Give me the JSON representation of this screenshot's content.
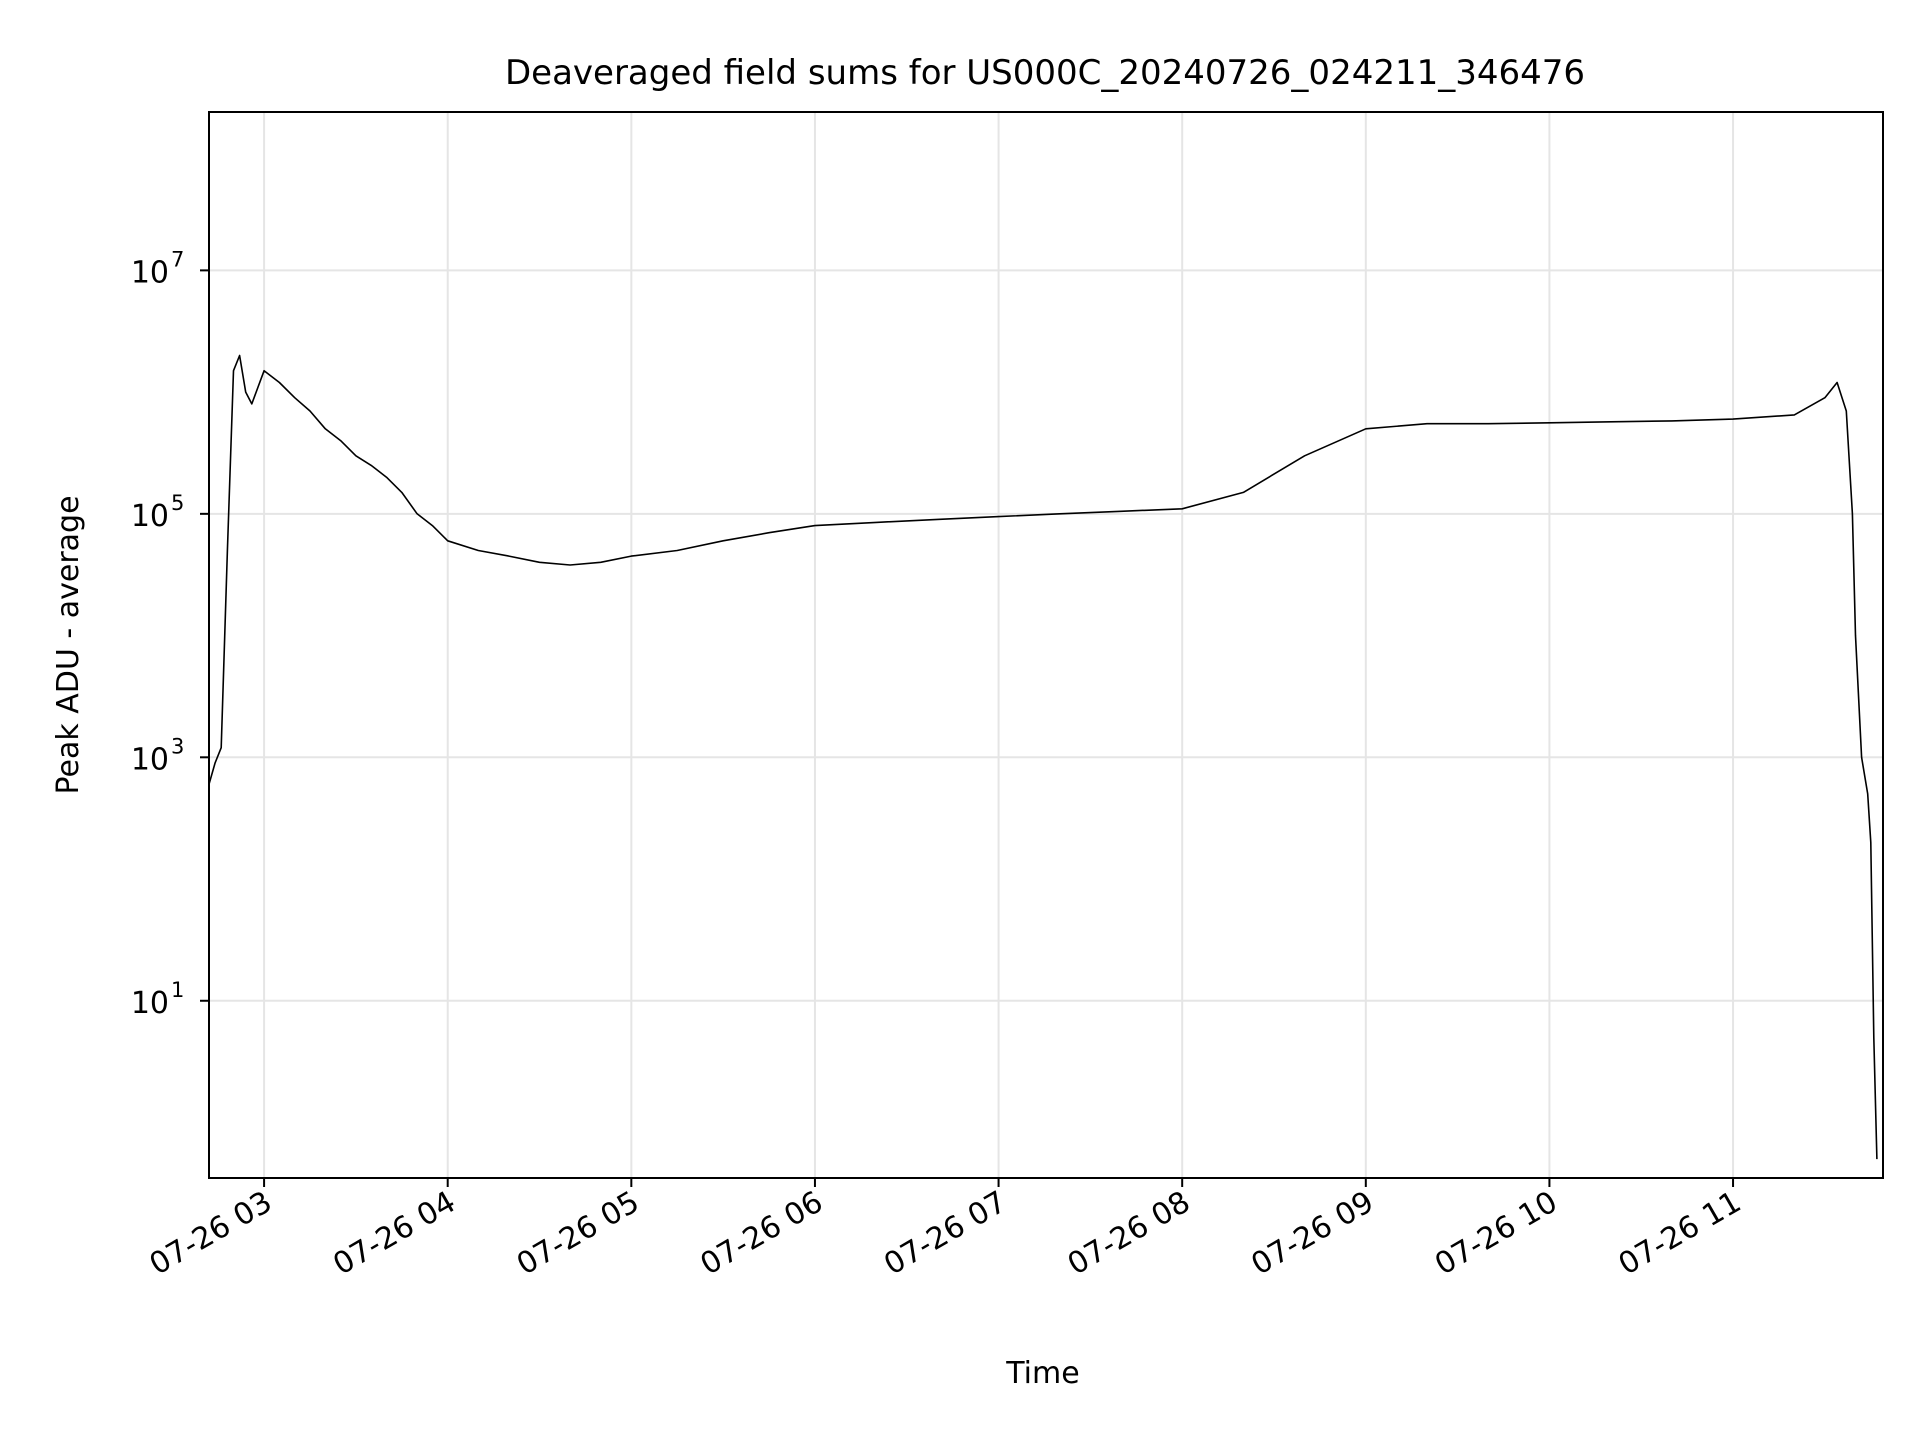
{
  "chart_data": {
    "type": "line",
    "title": "Deaveraged field sums for US000C_20240726_024211_346476",
    "xlabel": "Time",
    "ylabel": "Peak ADU - average",
    "x_ticks": [
      "07-26 03",
      "07-26 04",
      "07-26 05",
      "07-26 06",
      "07-26 07",
      "07-26 08",
      "07-26 09",
      "07-26 10",
      "07-26 11"
    ],
    "y_ticks": [
      {
        "base": "10",
        "exp": "1",
        "value": 10
      },
      {
        "base": "10",
        "exp": "3",
        "value": 1000
      },
      {
        "base": "10",
        "exp": "5",
        "value": 100000
      },
      {
        "base": "10",
        "exp": "7",
        "value": 10000000
      }
    ],
    "y_scale": "log",
    "ylim": [
      0.35,
      200000000
    ],
    "xlim": [
      "2024-07-26 02:42",
      "2024-07-26 11:49"
    ],
    "grid": true,
    "line_color": "#000000",
    "grid_color": "#e5e5e5",
    "series": [
      {
        "x": [
          "2024-07-26 02:42",
          "2024-07-26 02:44",
          "2024-07-26 02:46",
          "2024-07-26 02:48",
          "2024-07-26 02:50",
          "2024-07-26 02:52",
          "2024-07-26 02:54",
          "2024-07-26 02:56",
          "2024-07-26 02:58",
          "2024-07-26 03:00",
          "2024-07-26 03:05",
          "2024-07-26 03:10",
          "2024-07-26 03:15",
          "2024-07-26 03:20",
          "2024-07-26 03:25",
          "2024-07-26 03:30",
          "2024-07-26 03:35",
          "2024-07-26 03:40",
          "2024-07-26 03:45",
          "2024-07-26 03:50",
          "2024-07-26 03:55",
          "2024-07-26 04:00",
          "2024-07-26 04:10",
          "2024-07-26 04:20",
          "2024-07-26 04:30",
          "2024-07-26 04:40",
          "2024-07-26 04:50",
          "2024-07-26 05:00",
          "2024-07-26 05:15",
          "2024-07-26 05:30",
          "2024-07-26 05:45",
          "2024-07-26 06:00",
          "2024-07-26 06:20",
          "2024-07-26 06:40",
          "2024-07-26 07:00",
          "2024-07-26 07:20",
          "2024-07-26 07:40",
          "2024-07-26 08:00",
          "2024-07-26 08:20",
          "2024-07-26 08:40",
          "2024-07-26 09:00",
          "2024-07-26 09:20",
          "2024-07-26 09:40",
          "2024-07-26 10:00",
          "2024-07-26 10:20",
          "2024-07-26 10:40",
          "2024-07-26 11:00",
          "2024-07-26 11:20",
          "2024-07-26 11:30",
          "2024-07-26 11:34",
          "2024-07-26 11:37",
          "2024-07-26 11:39",
          "2024-07-26 11:40",
          "2024-07-26 11:42",
          "2024-07-26 11:44",
          "2024-07-26 11:45",
          "2024-07-26 11:46",
          "2024-07-26 11:47"
        ],
        "y": [
          600,
          900,
          1200,
          50000,
          1500000,
          2000000,
          1000000,
          800000,
          1100000,
          1500000,
          1200000,
          900000,
          700000,
          500000,
          400000,
          300000,
          250000,
          200000,
          150000,
          100000,
          80000,
          60000,
          50000,
          45000,
          40000,
          38000,
          40000,
          45000,
          50000,
          60000,
          70000,
          80000,
          85000,
          90000,
          95000,
          100000,
          105000,
          110000,
          150000,
          300000,
          500000,
          550000,
          550000,
          560000,
          570000,
          580000,
          600000,
          650000,
          900000,
          1200000,
          700000,
          100000,
          10000,
          1000,
          500,
          200,
          5,
          0.5
        ]
      }
    ],
    "annotations": []
  }
}
